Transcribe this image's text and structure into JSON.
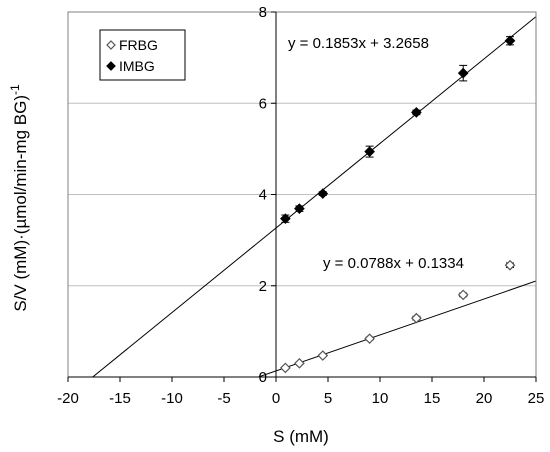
{
  "chart_data": {
    "type": "scatter",
    "xlabel": "S (mM)",
    "ylabel": {
      "main": "S/V (mM)·(µmol/min-mg BG)",
      "superscript": "-1"
    },
    "xlim": [
      -20,
      25
    ],
    "ylim": [
      0,
      8
    ],
    "x_ticks": [
      -20,
      -15,
      -10,
      -5,
      0,
      5,
      10,
      15,
      20,
      25
    ],
    "y_ticks": [
      0,
      2,
      4,
      6,
      8
    ],
    "grid": {
      "horizontal": true,
      "vertical": false
    },
    "legend_position": "top-left",
    "series": [
      {
        "name": "FRBG",
        "marker": "diamond-open",
        "x": [
          0.9,
          2.25,
          4.5,
          9.0,
          13.5,
          18.0,
          22.5
        ],
        "y": [
          0.2,
          0.3,
          0.47,
          0.84,
          1.29,
          1.8,
          2.45
        ],
        "yerr": [
          0.02,
          0.02,
          0.02,
          0.03,
          0.04,
          0.04,
          0.05
        ],
        "fit": {
          "slope": 0.0788,
          "intercept": 0.1334,
          "equation": "y = 0.0788x + 0.1334"
        }
      },
      {
        "name": "IMBG",
        "marker": "diamond-filled",
        "x": [
          0.9,
          2.25,
          4.5,
          9.0,
          13.5,
          18.0,
          22.5
        ],
        "y": [
          3.47,
          3.69,
          4.02,
          4.94,
          5.8,
          6.66,
          7.37
        ],
        "yerr": [
          0.08,
          0.06,
          0.04,
          0.12,
          0.05,
          0.17,
          0.09
        ],
        "fit": {
          "slope": 0.1853,
          "intercept": 3.2658,
          "equation": "y = 0.1853x + 3.2658"
        }
      }
    ]
  }
}
